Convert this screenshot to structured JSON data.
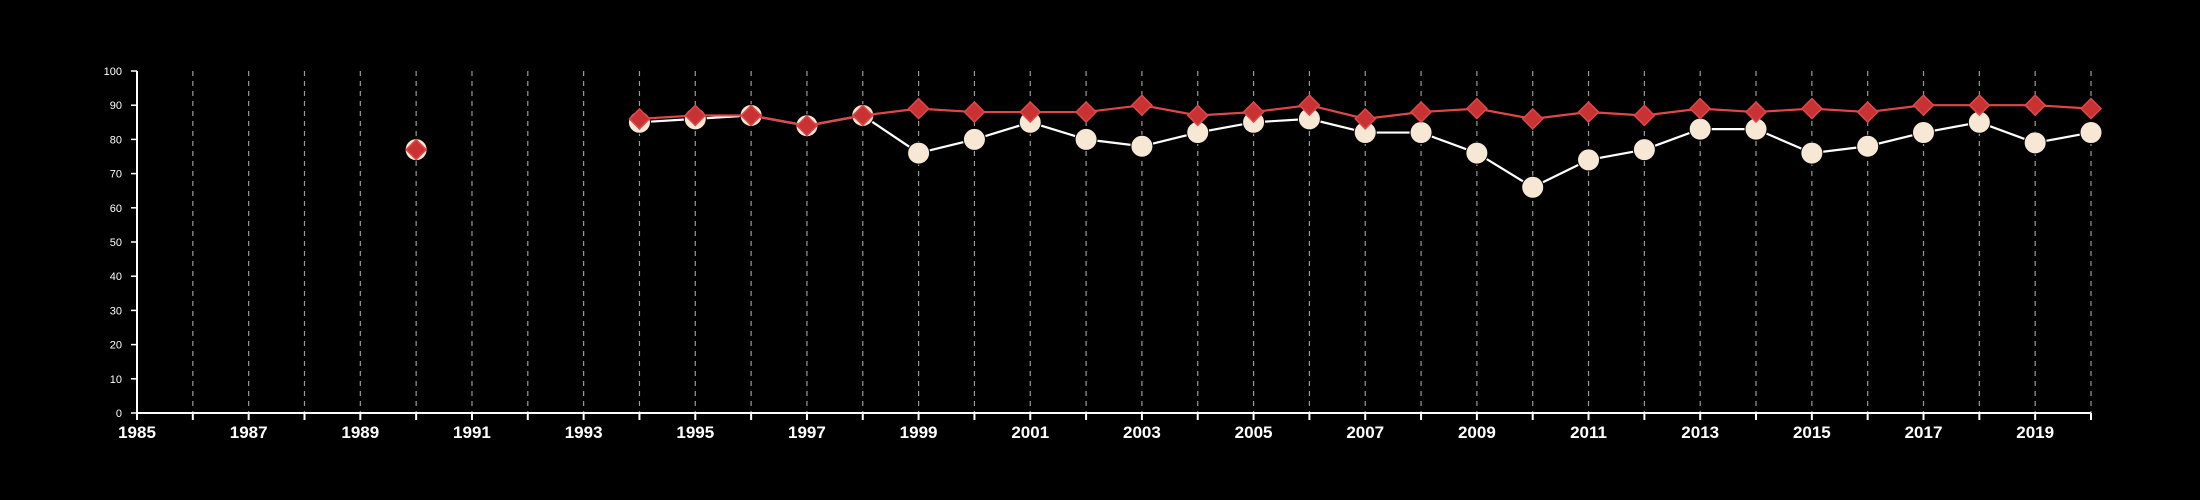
{
  "colors": {
    "background": "#000000",
    "axis": "#ffffff",
    "grid": "#9a9a9a",
    "series_circle_fill": "#f7e8d5",
    "series_circle_line": "#ffffff",
    "series_diamond_fill": "#c83232",
    "series_diamond_line": "#e0474b"
  },
  "chart_data": {
    "type": "line",
    "title": "",
    "xlabel": "",
    "ylabel": "",
    "xlim": [
      1985,
      2020
    ],
    "ylim": [
      0,
      100
    ],
    "grid": "vertical-dashed",
    "xticks": [
      1985,
      1987,
      1989,
      1991,
      1993,
      1995,
      1997,
      1999,
      2001,
      2003,
      2005,
      2007,
      2009,
      2011,
      2013,
      2015,
      2017,
      2019
    ],
    "yticks": [
      0,
      10,
      20,
      30,
      40,
      50,
      60,
      70,
      80,
      90,
      100
    ],
    "series": [
      {
        "marker": "circle",
        "x": [
          1990,
          1994,
          1995,
          1996,
          1997,
          1998,
          1999,
          2000,
          2001,
          2002,
          2003,
          2004,
          2005,
          2006,
          2007,
          2008,
          2009,
          2010,
          2011,
          2012,
          2013,
          2014,
          2015,
          2016,
          2017,
          2018,
          2019,
          2020
        ],
        "values": [
          77,
          85,
          86,
          87,
          84,
          87,
          76,
          80,
          85,
          80,
          78,
          82,
          85,
          86,
          82,
          82,
          76,
          66,
          74,
          77,
          83,
          83,
          76,
          78,
          82,
          85,
          79,
          82
        ]
      },
      {
        "marker": "diamond",
        "x": [
          1990,
          1994,
          1995,
          1996,
          1997,
          1998,
          1999,
          2000,
          2001,
          2002,
          2003,
          2004,
          2005,
          2006,
          2007,
          2008,
          2009,
          2010,
          2011,
          2012,
          2013,
          2014,
          2015,
          2016,
          2017,
          2018,
          2019,
          2020
        ],
        "values": [
          77,
          86,
          87,
          87,
          84,
          87,
          89,
          88,
          88,
          88,
          90,
          87,
          88,
          90,
          86,
          88,
          89,
          86,
          88,
          87,
          89,
          88,
          89,
          88,
          90,
          90,
          90,
          89
        ]
      }
    ]
  }
}
